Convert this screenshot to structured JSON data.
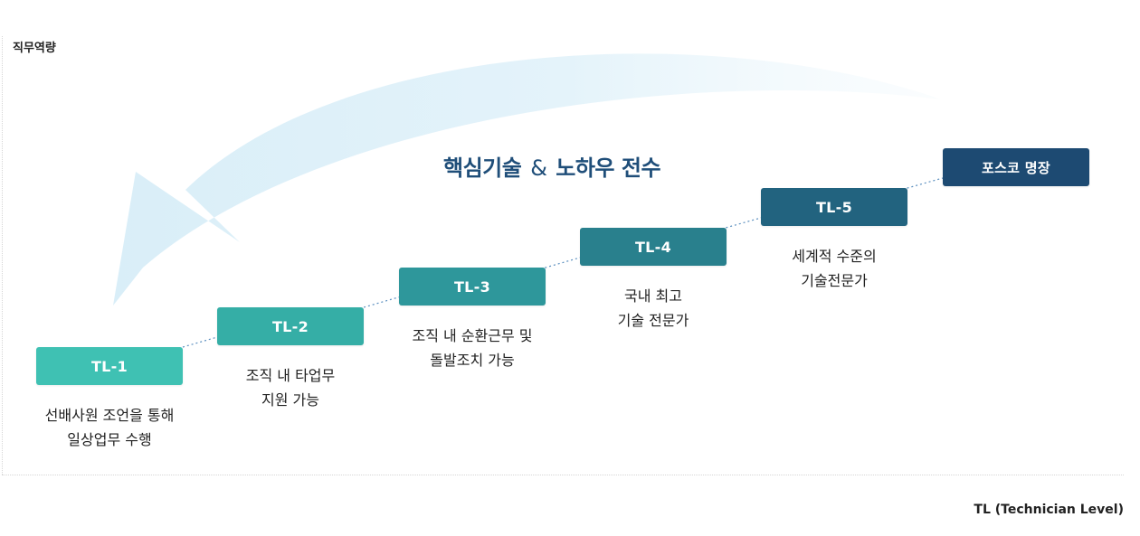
{
  "axis": {
    "y_label": "직무역량",
    "x_label": "TL (Technician Level)"
  },
  "headline": {
    "part1": "핵심기술",
    "amp": "&",
    "part2": "노하우 전수"
  },
  "levels": [
    {
      "label": "TL-1",
      "description": "선배사원 조언을 통해\n일상업무 수행",
      "color": "#3fc1b3"
    },
    {
      "label": "TL-2",
      "description": "조직 내 타업무\n지원 가능",
      "color": "#35aea6"
    },
    {
      "label": "TL-3",
      "description": "조직 내 순환근무 및\n돌발조치 가능",
      "color": "#2e979b"
    },
    {
      "label": "TL-4",
      "description": "국내 최고\n기술 전문가",
      "color": "#29808d"
    },
    {
      "label": "TL-5",
      "description": "세계적 수준의\n기술전문가",
      "color": "#22637f"
    },
    {
      "label": "포스코 명장",
      "description": "",
      "color": "#1d4a72"
    }
  ],
  "colors": {
    "arrow": "#dff0f8",
    "headline": "#1f4e79",
    "connector": "#5b8fbf"
  }
}
